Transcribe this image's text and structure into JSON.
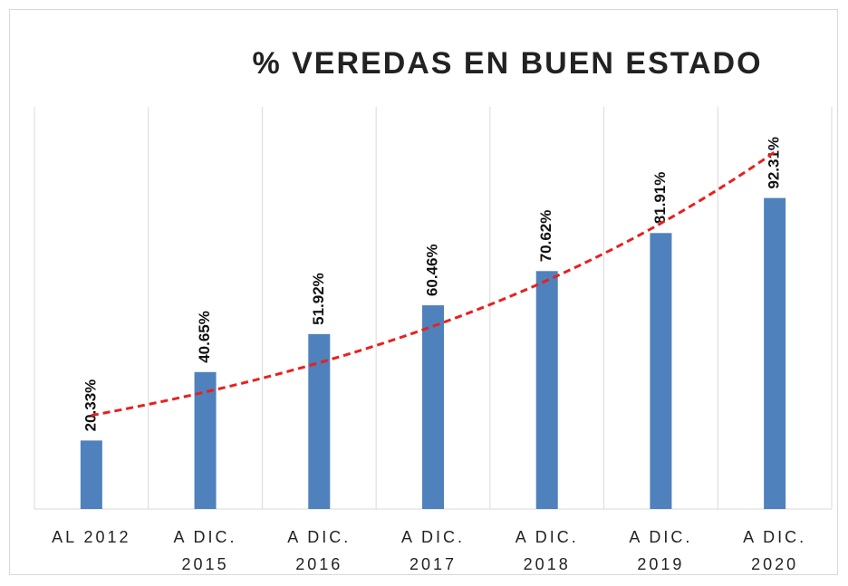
{
  "chart_data": {
    "type": "bar",
    "title": "% VEREDAS EN BUEN ESTADO",
    "categories": [
      "AL 2012",
      "A DIC. 2015",
      "A DIC. 2016",
      "A DIC. 2017",
      "A DIC. 2018",
      "A DIC. 2019",
      "A DIC. 2020"
    ],
    "values": [
      20.33,
      40.65,
      51.92,
      60.46,
      70.62,
      81.91,
      92.31
    ],
    "value_labels": [
      "20.33%",
      "40.65%",
      "51.92%",
      "60.46%",
      "70.62%",
      "81.91%",
      "92.31%"
    ],
    "color": "#4f81bd",
    "ylim": [
      0,
      100
    ],
    "grid": true,
    "trendline": {
      "type": "exponential",
      "color": "#e8201f",
      "dashed": true
    }
  }
}
